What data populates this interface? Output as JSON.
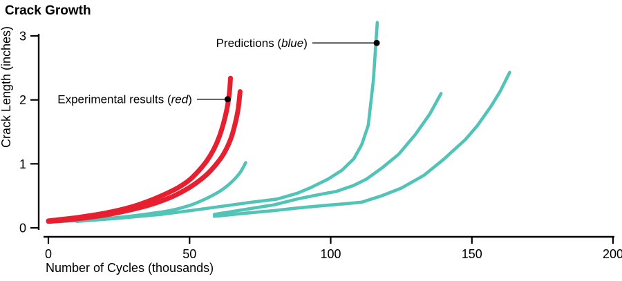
{
  "title": "Crack Growth",
  "axes": {
    "x": {
      "label": "Number of Cycles (thousands)",
      "min": 0,
      "max": 200,
      "ticks": [
        0,
        50,
        100,
        150,
        200
      ]
    },
    "y": {
      "label": "Crack Length (inches)",
      "min": 0,
      "max": 3,
      "ticks": [
        0,
        1,
        2,
        3
      ]
    }
  },
  "colors": {
    "experimental": "#e71f2e",
    "prediction": "#52c3b7",
    "axis": "#000000",
    "annotation": "#000000"
  },
  "annotations": [
    {
      "id": "predictions",
      "prefix": "Predictions (",
      "em": "blue",
      "suffix": ")",
      "dot_cycles": 116.3,
      "dot_inches": 2.89,
      "leader_from_cycles": 93.5
    },
    {
      "id": "experimental",
      "prefix": "Experimental results (",
      "em": "red",
      "suffix": ")",
      "dot_cycles": 63.5,
      "dot_inches": 2.01,
      "leader_from_cycles": 52.6
    }
  ],
  "chart_data": {
    "type": "line",
    "title": "Crack Growth",
    "xlabel": "Number of Cycles (thousands)",
    "ylabel": "Crack Length (inches)",
    "xlim": [
      0,
      200
    ],
    "ylim": [
      0,
      3
    ],
    "grid": false,
    "legend": "annotated-callouts",
    "series": [
      {
        "name": "Experimental result 1",
        "role": "experimental",
        "color": "#e71f2e",
        "smooth": true,
        "points": [
          [
            0,
            0.11
          ],
          [
            10,
            0.16
          ],
          [
            20,
            0.23
          ],
          [
            28,
            0.31
          ],
          [
            35,
            0.41
          ],
          [
            41,
            0.52
          ],
          [
            46,
            0.63
          ],
          [
            50,
            0.75
          ],
          [
            53,
            0.88
          ],
          [
            56,
            1.04
          ],
          [
            58.5,
            1.22
          ],
          [
            60.5,
            1.42
          ],
          [
            62,
            1.63
          ],
          [
            63.2,
            1.85
          ],
          [
            64.1,
            2.1
          ],
          [
            64.5,
            2.34
          ]
        ]
      },
      {
        "name": "Experimental result 2",
        "role": "experimental",
        "color": "#e71f2e",
        "smooth": true,
        "points": [
          [
            0,
            0.1
          ],
          [
            10,
            0.14
          ],
          [
            20,
            0.2
          ],
          [
            28,
            0.27
          ],
          [
            36,
            0.36
          ],
          [
            43,
            0.47
          ],
          [
            48,
            0.58
          ],
          [
            52,
            0.69
          ],
          [
            56,
            0.83
          ],
          [
            59,
            0.97
          ],
          [
            62,
            1.15
          ],
          [
            64.5,
            1.38
          ],
          [
            66,
            1.6
          ],
          [
            67.2,
            1.85
          ],
          [
            67.9,
            2.13
          ]
        ]
      },
      {
        "name": "Prediction 1",
        "role": "prediction",
        "color": "#52c3b7",
        "smooth": true,
        "points": [
          [
            0,
            0.09
          ],
          [
            12,
            0.12
          ],
          [
            24,
            0.16
          ],
          [
            34,
            0.21
          ],
          [
            43,
            0.27
          ],
          [
            50,
            0.35
          ],
          [
            56,
            0.46
          ],
          [
            61,
            0.58
          ],
          [
            65,
            0.72
          ],
          [
            68,
            0.87
          ],
          [
            69.9,
            1.02
          ]
        ]
      },
      {
        "name": "Prediction 2",
        "role": "prediction",
        "color": "#52c3b7",
        "smooth": false,
        "points": [
          [
            10,
            0.1
          ],
          [
            25,
            0.15
          ],
          [
            40,
            0.21
          ],
          [
            52,
            0.28
          ],
          [
            62,
            0.34
          ],
          [
            72,
            0.4
          ],
          [
            81,
            0.45
          ],
          [
            88.1,
            0.54
          ],
          [
            93,
            0.63
          ],
          [
            99,
            0.76
          ],
          [
            104,
            0.9
          ],
          [
            108.2,
            1.08
          ],
          [
            111,
            1.3
          ],
          [
            113.3,
            1.6
          ],
          [
            115.1,
            2.3
          ],
          [
            116.5,
            3.21
          ]
        ]
      },
      {
        "name": "Prediction 3",
        "role": "prediction",
        "color": "#52c3b7",
        "smooth": false,
        "points": [
          [
            58.8,
            0.21
          ],
          [
            70,
            0.29
          ],
          [
            80,
            0.36
          ],
          [
            88.1,
            0.45
          ],
          [
            96,
            0.52
          ],
          [
            102,
            0.57
          ],
          [
            108,
            0.66
          ],
          [
            112.6,
            0.76
          ],
          [
            118,
            0.93
          ],
          [
            124.1,
            1.15
          ],
          [
            130,
            1.46
          ],
          [
            135.1,
            1.78
          ],
          [
            139.1,
            2.1
          ]
        ]
      },
      {
        "name": "Prediction 4",
        "role": "prediction",
        "color": "#52c3b7",
        "smooth": false,
        "points": [
          [
            58.8,
            0.18
          ],
          [
            70,
            0.23
          ],
          [
            80,
            0.27
          ],
          [
            88.1,
            0.31
          ],
          [
            98,
            0.35
          ],
          [
            106,
            0.38
          ],
          [
            110.9,
            0.4
          ],
          [
            118,
            0.5
          ],
          [
            125,
            0.62
          ],
          [
            133,
            0.82
          ],
          [
            140,
            1.07
          ],
          [
            147.7,
            1.38
          ],
          [
            152,
            1.6
          ],
          [
            156.8,
            1.9
          ],
          [
            160,
            2.13
          ],
          [
            163.4,
            2.43
          ]
        ]
      }
    ]
  }
}
